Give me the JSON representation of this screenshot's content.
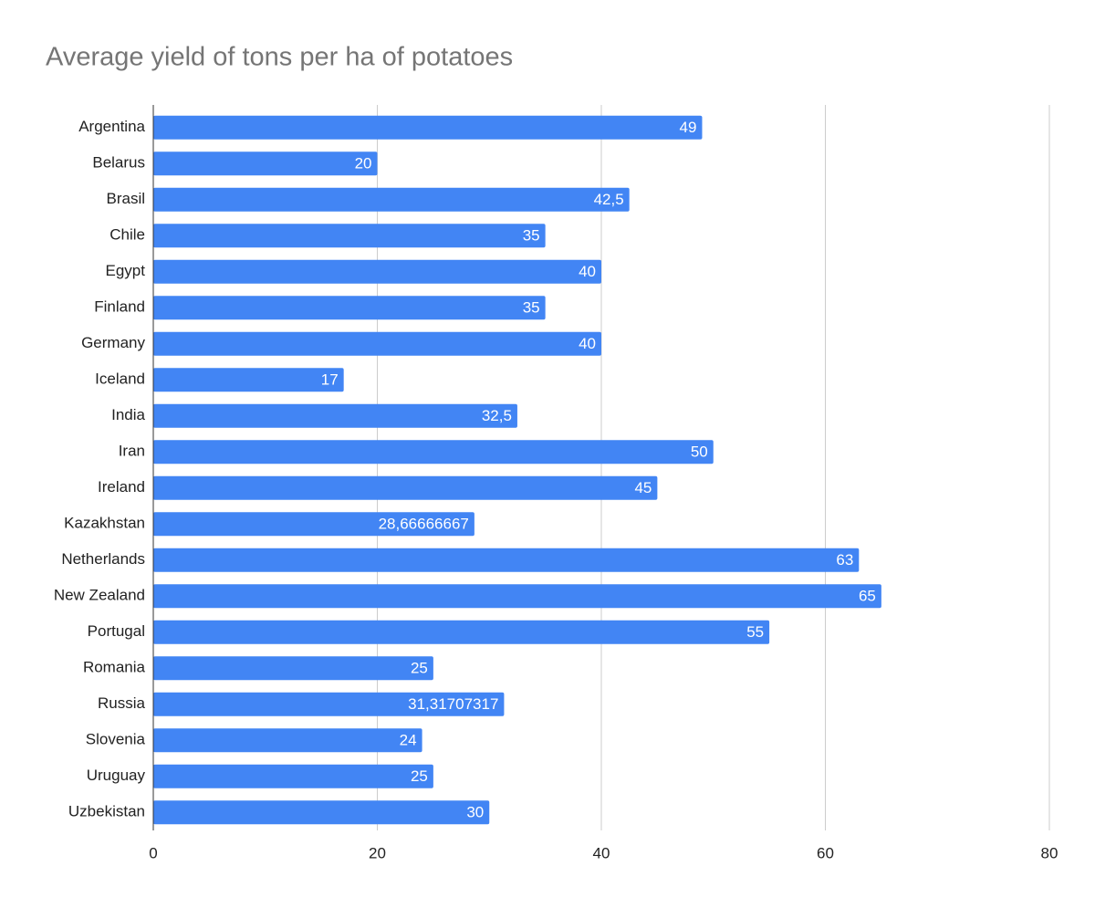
{
  "chart_data": {
    "type": "barh",
    "title": "Average yield of tons per ha of potatoes",
    "categories": [
      "Argentina",
      "Belarus",
      "Brasil",
      "Chile",
      "Egypt",
      "Finland",
      "Germany",
      "Iceland",
      "India",
      "Iran",
      "Ireland",
      "Kazakhstan",
      "Netherlands",
      "New Zealand",
      "Portugal",
      "Romania",
      "Russia",
      "Slovenia",
      "Uruguay",
      "Uzbekistan"
    ],
    "values": [
      49,
      20,
      42.5,
      35,
      40,
      35,
      40,
      17,
      32.5,
      50,
      45,
      28.66666667,
      63,
      65,
      55,
      25,
      31.31707317,
      24,
      25,
      30
    ],
    "value_labels": [
      "49",
      "20",
      "42,5",
      "35",
      "40",
      "35",
      "40",
      "17",
      "32,5",
      "50",
      "45",
      "28,66666667",
      "63",
      "65",
      "55",
      "25",
      "31,31707317",
      "24",
      "25",
      "30"
    ],
    "color": "#4285f4",
    "xlim": [
      0,
      80
    ],
    "xticks": [
      0,
      20,
      40,
      60,
      80
    ],
    "grid": true
  }
}
